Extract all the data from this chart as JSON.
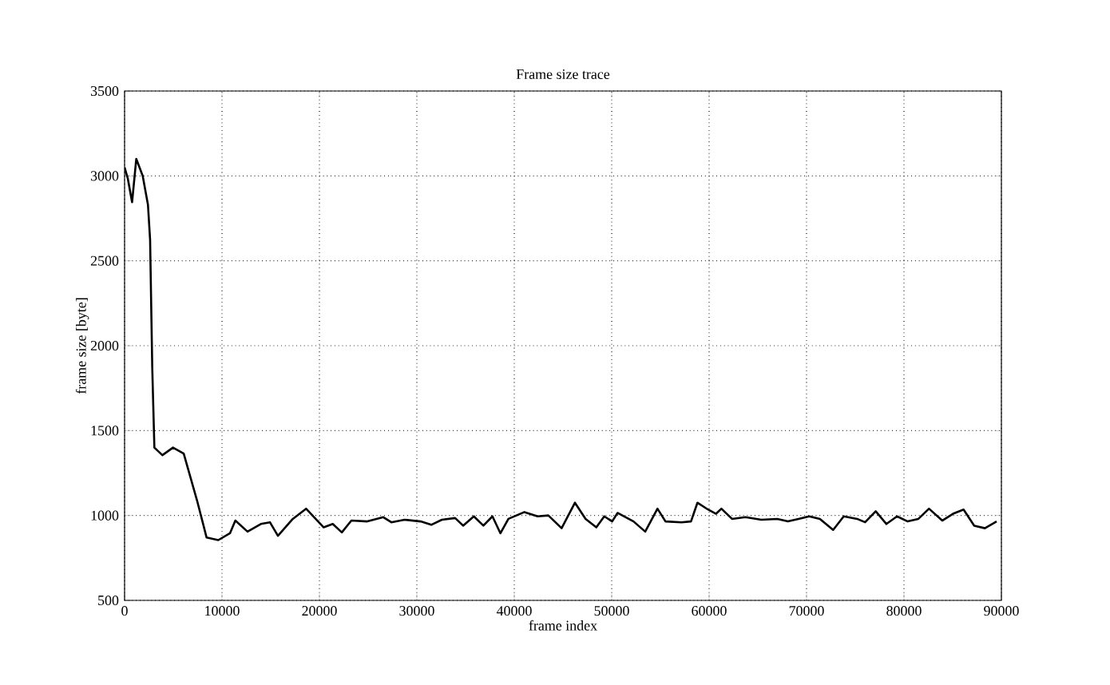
{
  "chart_data": {
    "type": "line",
    "title": "Frame size trace",
    "xlabel": "frame index",
    "ylabel": "frame size [byte]",
    "xlim": [
      0,
      90000
    ],
    "ylim": [
      500,
      3500
    ],
    "xticks": [
      0,
      10000,
      20000,
      30000,
      40000,
      50000,
      60000,
      70000,
      80000,
      90000
    ],
    "yticks": [
      500,
      1000,
      1500,
      2000,
      2500,
      3000,
      3500
    ],
    "grid": true,
    "marker": "none",
    "line_style": "solid",
    "series": [
      {
        "color": "#000000",
        "x": [
          0,
          330,
          770,
          1200,
          1860,
          2400,
          2620,
          2840,
          3060,
          3880,
          4970,
          6070,
          7430,
          8420,
          9620,
          10820,
          11370,
          12620,
          13990,
          14920,
          15740,
          17270,
          18630,
          20440,
          21370,
          22300,
          23280,
          24920,
          26560,
          27380,
          28740,
          30380,
          31480,
          32570,
          33930,
          34750,
          35850,
          36830,
          37760,
          38580,
          39400,
          41040,
          42400,
          43500,
          44860,
          46230,
          47320,
          48420,
          49240,
          50050,
          50600,
          52240,
          53440,
          54700,
          55520,
          57160,
          58140,
          58800,
          59890,
          60710,
          61260,
          62350,
          63720,
          65360,
          67000,
          68090,
          69180,
          70280,
          71370,
          72730,
          73820,
          75190,
          76010,
          77100,
          78200,
          79290,
          80380,
          81480,
          82570,
          83930,
          85030,
          86120,
          87210,
          88310,
          89510
        ],
        "values": [
          3050,
          2985,
          2845,
          3100,
          3000,
          2830,
          2625,
          1873,
          1400,
          1355,
          1400,
          1365,
          1090,
          870,
          855,
          895,
          970,
          905,
          950,
          960,
          880,
          980,
          1040,
          930,
          950,
          900,
          970,
          965,
          990,
          960,
          975,
          965,
          945,
          975,
          985,
          940,
          995,
          940,
          995,
          895,
          980,
          1020,
          995,
          1000,
          925,
          1075,
          980,
          930,
          995,
          965,
          1015,
          965,
          905,
          1040,
          965,
          960,
          965,
          1075,
          1035,
          1010,
          1040,
          980,
          990,
          975,
          980,
          965,
          980,
          995,
          980,
          915,
          995,
          980,
          960,
          1025,
          950,
          995,
          965,
          980,
          1040,
          970,
          1010,
          1035,
          940,
          925,
          965
        ]
      }
    ]
  }
}
